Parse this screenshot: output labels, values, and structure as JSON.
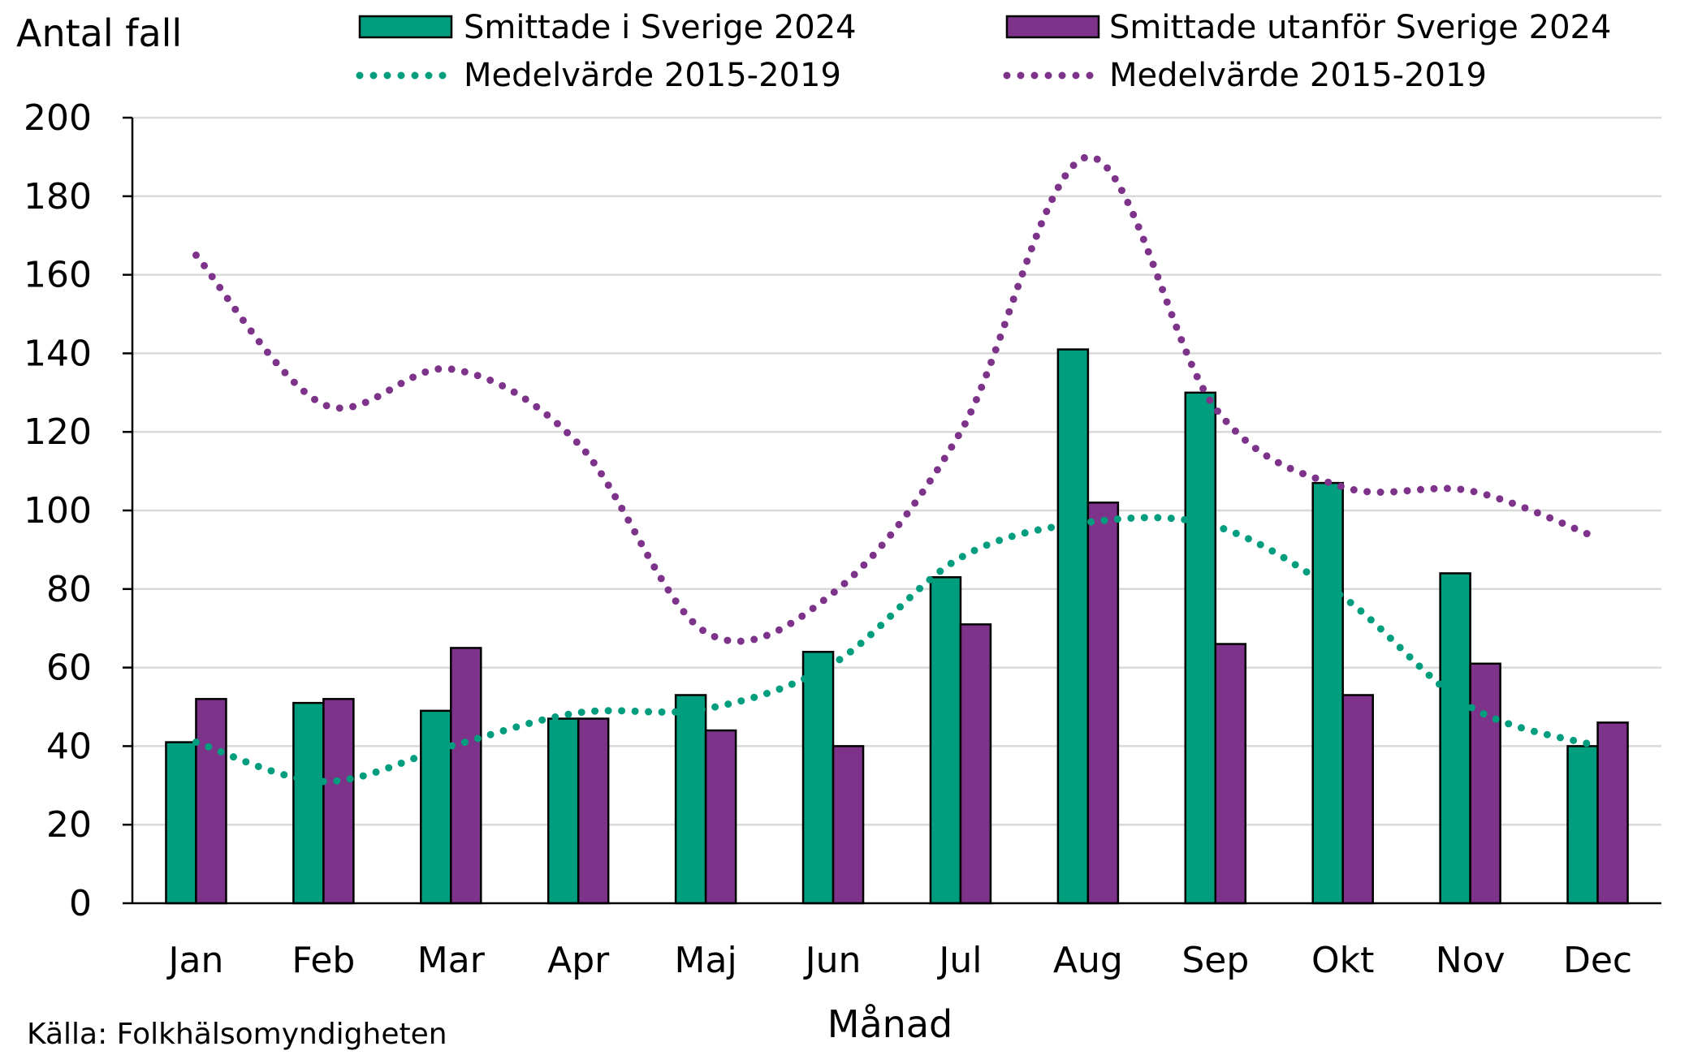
{
  "chart_data": {
    "type": "bar",
    "ylabel": "Antal fall",
    "xlabel": "Månad",
    "source": "Källa: Folkhälsomyndigheten",
    "ylim": [
      0,
      200
    ],
    "yticks": [
      0,
      20,
      40,
      60,
      80,
      100,
      120,
      140,
      160,
      180,
      200
    ],
    "categories": [
      "Jan",
      "Feb",
      "Mar",
      "Apr",
      "Maj",
      "Jun",
      "Jul",
      "Aug",
      "Sep",
      "Okt",
      "Nov",
      "Dec"
    ],
    "series": [
      {
        "name": "Smittade i Sverige 2024",
        "kind": "bar",
        "color": "#009E7E",
        "values": [
          41,
          51,
          49,
          47,
          53,
          64,
          83,
          141,
          130,
          107,
          84,
          40
        ]
      },
      {
        "name": "Smittade utanför Sverige 2024",
        "kind": "bar",
        "color": "#7E338A",
        "values": [
          52,
          52,
          65,
          47,
          44,
          40,
          71,
          102,
          66,
          53,
          61,
          46
        ]
      },
      {
        "name": "Medelvärde 2015-2019",
        "kind": "dotted-line",
        "color": "#009E7E",
        "values": [
          41,
          31,
          40,
          48.5,
          49.5,
          61,
          88,
          97,
          96,
          78,
          50,
          40
        ]
      },
      {
        "name": "Medelvärde 2015-2019",
        "kind": "dotted-line",
        "color": "#7E338A",
        "values": [
          165,
          127,
          136,
          117,
          69,
          79,
          120,
          190,
          126,
          106,
          105,
          93
        ]
      }
    ],
    "legend": "top",
    "grid": true
  }
}
